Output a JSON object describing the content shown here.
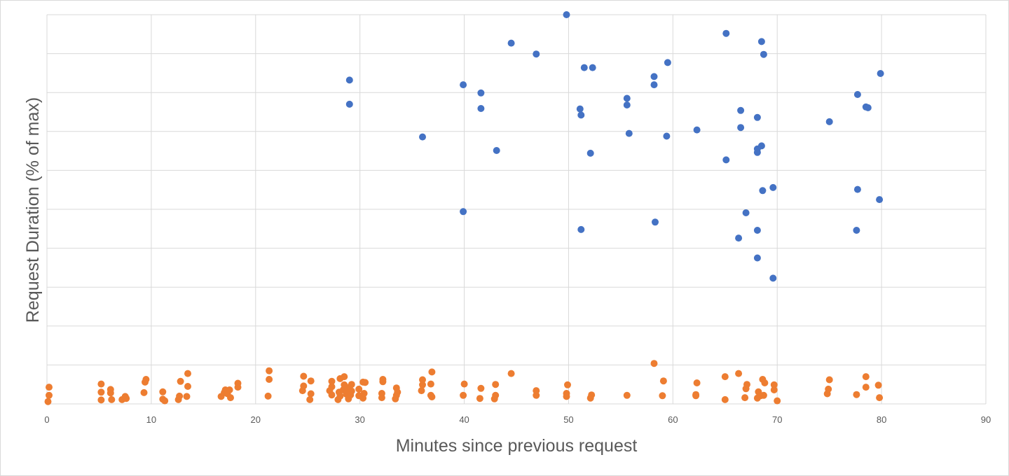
{
  "chart_data": {
    "type": "scatter",
    "xlabel": "Minutes since previous request",
    "ylabel": "Request Duration (% of max)",
    "xlim": [
      0,
      90
    ],
    "ylim": [
      0,
      100
    ],
    "x_ticks": [
      0,
      10,
      20,
      30,
      40,
      50,
      60,
      70,
      80,
      90
    ],
    "y_tick_labels_shown": false,
    "grid": true,
    "legend": "none",
    "series": [
      {
        "color": "#4472c4",
        "points": [
          [
            29.0,
            83.2
          ],
          [
            29.0,
            77.0
          ],
          [
            36.0,
            68.6
          ],
          [
            39.9,
            82.0
          ],
          [
            39.9,
            49.4
          ],
          [
            41.6,
            79.9
          ],
          [
            41.6,
            75.9
          ],
          [
            43.1,
            65.1
          ],
          [
            44.5,
            92.7
          ],
          [
            46.9,
            89.9
          ],
          [
            49.8,
            100.0
          ],
          [
            51.1,
            75.8
          ],
          [
            51.2,
            74.2
          ],
          [
            51.2,
            44.8
          ],
          [
            51.5,
            86.4
          ],
          [
            52.1,
            64.4
          ],
          [
            52.3,
            86.4
          ],
          [
            55.6,
            78.5
          ],
          [
            55.6,
            76.8
          ],
          [
            55.8,
            69.5
          ],
          [
            58.2,
            84.1
          ],
          [
            58.2,
            82.0
          ],
          [
            58.3,
            46.7
          ],
          [
            59.4,
            68.8
          ],
          [
            59.5,
            87.7
          ],
          [
            62.3,
            70.4
          ],
          [
            65.1,
            95.2
          ],
          [
            65.1,
            62.7
          ],
          [
            66.3,
            42.6
          ],
          [
            66.5,
            75.4
          ],
          [
            66.5,
            71.0
          ],
          [
            67.0,
            49.1
          ],
          [
            68.1,
            73.6
          ],
          [
            68.1,
            65.5
          ],
          [
            68.1,
            64.6
          ],
          [
            68.1,
            44.6
          ],
          [
            68.1,
            37.5
          ],
          [
            68.5,
            93.1
          ],
          [
            68.5,
            66.3
          ],
          [
            68.6,
            54.8
          ],
          [
            68.7,
            89.8
          ],
          [
            69.6,
            55.6
          ],
          [
            69.6,
            32.3
          ],
          [
            75.0,
            72.5
          ],
          [
            77.6,
            44.6
          ],
          [
            77.7,
            55.1
          ],
          [
            77.7,
            79.5
          ],
          [
            78.5,
            76.3
          ],
          [
            78.7,
            76.1
          ],
          [
            79.8,
            52.5
          ],
          [
            79.9,
            84.9
          ]
        ]
      },
      {
        "color": "#ed7d31",
        "points": [
          [
            0.1,
            0.6
          ],
          [
            0.2,
            2.2
          ],
          [
            0.2,
            4.3
          ],
          [
            5.2,
            1.0
          ],
          [
            5.2,
            3.0
          ],
          [
            5.2,
            5.1
          ],
          [
            6.1,
            2.8
          ],
          [
            6.1,
            3.7
          ],
          [
            6.2,
            1.1
          ],
          [
            7.2,
            1.1
          ],
          [
            7.5,
            1.9
          ],
          [
            7.6,
            1.4
          ],
          [
            9.3,
            2.9
          ],
          [
            9.4,
            5.6
          ],
          [
            9.5,
            6.3
          ],
          [
            11.1,
            1.2
          ],
          [
            11.1,
            3.1
          ],
          [
            11.3,
            0.8
          ],
          [
            12.6,
            1.1
          ],
          [
            12.7,
            2.0
          ],
          [
            12.8,
            5.8
          ],
          [
            13.4,
            1.9
          ],
          [
            13.5,
            4.5
          ],
          [
            13.5,
            7.8
          ],
          [
            16.7,
            1.9
          ],
          [
            17.0,
            2.9
          ],
          [
            17.1,
            3.6
          ],
          [
            17.3,
            2.6
          ],
          [
            17.5,
            3.6
          ],
          [
            17.6,
            1.6
          ],
          [
            18.3,
            4.3
          ],
          [
            18.3,
            5.3
          ],
          [
            21.2,
            2.0
          ],
          [
            21.3,
            6.3
          ],
          [
            21.3,
            8.5
          ],
          [
            24.5,
            3.4
          ],
          [
            24.6,
            4.6
          ],
          [
            24.6,
            7.1
          ],
          [
            25.2,
            1.1
          ],
          [
            25.3,
            2.6
          ],
          [
            25.3,
            5.9
          ],
          [
            27.1,
            3.4
          ],
          [
            27.3,
            2.3
          ],
          [
            27.3,
            4.4
          ],
          [
            27.3,
            5.8
          ],
          [
            27.9,
            1.1
          ],
          [
            28.0,
            3.0
          ],
          [
            28.1,
            2.0
          ],
          [
            28.1,
            6.5
          ],
          [
            28.4,
            3.6
          ],
          [
            28.5,
            4.9
          ],
          [
            28.5,
            7.0
          ],
          [
            28.7,
            2.5
          ],
          [
            28.8,
            3.4
          ],
          [
            28.9,
            1.3
          ],
          [
            28.9,
            4.2
          ],
          [
            29.1,
            2.3
          ],
          [
            29.2,
            3.3
          ],
          [
            29.2,
            5.0
          ],
          [
            29.9,
            2.1
          ],
          [
            29.9,
            3.8
          ],
          [
            30.3,
            1.5
          ],
          [
            30.3,
            5.6
          ],
          [
            30.4,
            2.7
          ],
          [
            30.5,
            5.5
          ],
          [
            32.1,
            1.6
          ],
          [
            32.1,
            2.7
          ],
          [
            32.2,
            5.7
          ],
          [
            32.2,
            6.3
          ],
          [
            33.4,
            1.3
          ],
          [
            33.5,
            2.2
          ],
          [
            33.5,
            4.1
          ],
          [
            33.6,
            3.0
          ],
          [
            35.9,
            3.4
          ],
          [
            36.0,
            4.9
          ],
          [
            36.0,
            6.2
          ],
          [
            36.8,
            2.2
          ],
          [
            36.8,
            5.1
          ],
          [
            36.9,
            1.8
          ],
          [
            36.9,
            8.2
          ],
          [
            39.9,
            2.2
          ],
          [
            40.0,
            5.1
          ],
          [
            41.5,
            1.4
          ],
          [
            41.6,
            4.0
          ],
          [
            42.9,
            1.3
          ],
          [
            43.0,
            2.2
          ],
          [
            43.0,
            5.0
          ],
          [
            44.5,
            7.8
          ],
          [
            46.9,
            2.2
          ],
          [
            46.9,
            3.4
          ],
          [
            49.8,
            1.9
          ],
          [
            49.8,
            2.7
          ],
          [
            49.9,
            4.9
          ],
          [
            52.1,
            1.5
          ],
          [
            52.2,
            2.3
          ],
          [
            55.6,
            2.2
          ],
          [
            58.2,
            10.4
          ],
          [
            59.0,
            2.1
          ],
          [
            59.1,
            5.9
          ],
          [
            62.2,
            2.1
          ],
          [
            62.2,
            2.4
          ],
          [
            62.3,
            5.4
          ],
          [
            65.0,
            1.1
          ],
          [
            65.0,
            7.0
          ],
          [
            66.3,
            7.8
          ],
          [
            66.9,
            1.6
          ],
          [
            67.0,
            3.9
          ],
          [
            67.1,
            5.0
          ],
          [
            68.1,
            1.5
          ],
          [
            68.2,
            3.1
          ],
          [
            68.4,
            2.1
          ],
          [
            68.6,
            6.3
          ],
          [
            68.7,
            2.2
          ],
          [
            68.8,
            5.4
          ],
          [
            69.7,
            3.6
          ],
          [
            69.7,
            4.9
          ],
          [
            70.0,
            0.8
          ],
          [
            74.8,
            2.6
          ],
          [
            74.9,
            3.8
          ],
          [
            75.0,
            6.2
          ],
          [
            77.6,
            2.4
          ],
          [
            78.5,
            4.3
          ],
          [
            78.5,
            7.0
          ],
          [
            79.7,
            4.8
          ],
          [
            79.8,
            1.6
          ]
        ]
      }
    ]
  }
}
